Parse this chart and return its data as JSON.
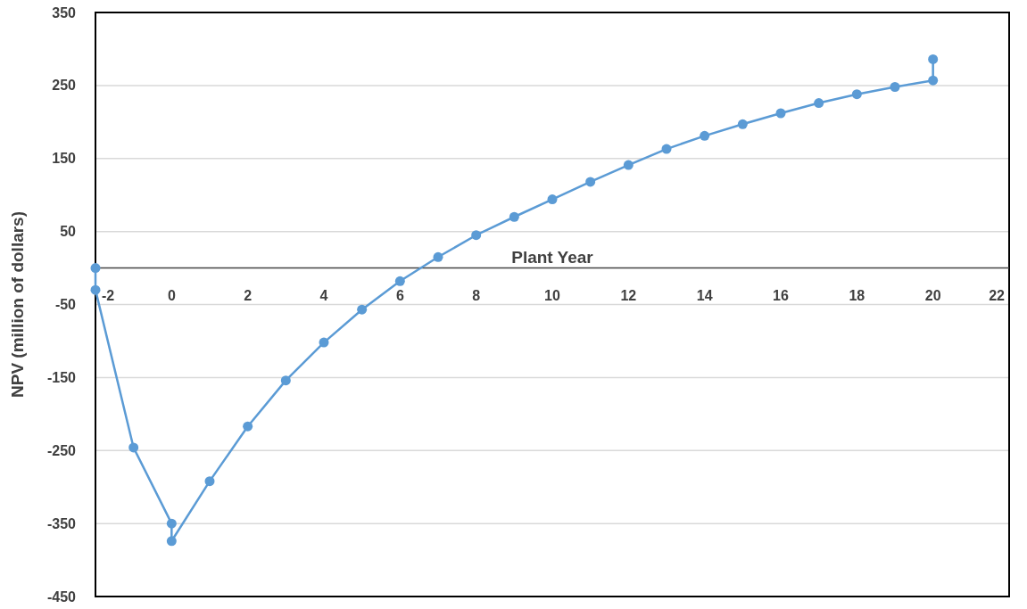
{
  "chart_data": {
    "type": "line",
    "xlabel": "Plant Year",
    "ylabel": "NPV (million of dollars)",
    "x": [
      -2,
      -2,
      -1,
      0,
      0,
      1,
      2,
      3,
      4,
      5,
      6,
      7,
      8,
      9,
      10,
      11,
      12,
      13,
      14,
      15,
      16,
      17,
      18,
      19,
      20,
      20
    ],
    "series": [
      {
        "color": "#5b9bd5",
        "values": [
          0,
          -30,
          -246,
          -350,
          -374,
          -292,
          -217,
          -154,
          -102,
          -57,
          -18,
          15,
          45,
          70,
          94,
          118,
          141,
          163,
          181,
          197,
          212,
          226,
          238,
          248,
          257,
          286
        ]
      }
    ],
    "xlim": [
      -2,
      22
    ],
    "xticks": [
      -2,
      0,
      2,
      4,
      6,
      8,
      10,
      12,
      14,
      16,
      18,
      20,
      22
    ],
    "ylim": [
      -450,
      350
    ],
    "yticks": [
      350,
      250,
      150,
      50,
      -50,
      -150,
      -250,
      -350,
      -450
    ],
    "grid": "y",
    "marker": "circle",
    "line_style": "solid"
  }
}
